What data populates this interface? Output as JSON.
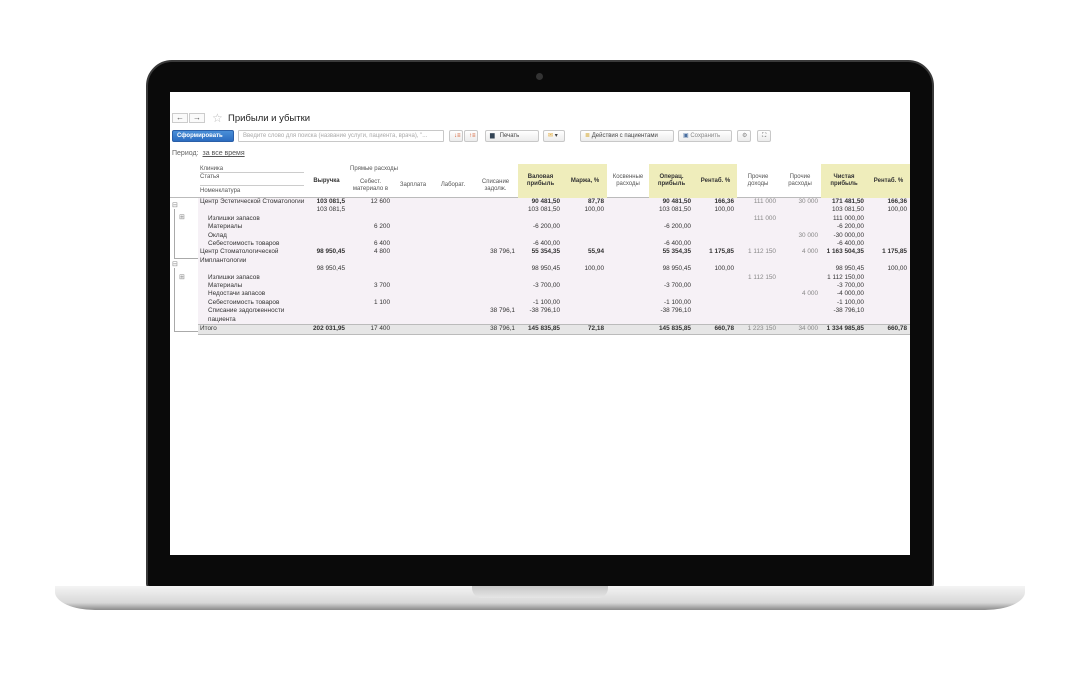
{
  "window": {
    "title": "Прибыли и убытки",
    "back": "←",
    "forward": "→"
  },
  "toolbar": {
    "generate": "Сформировать",
    "search_placeholder": "Введите слово для поиска (название услуги, пациента, врача), \"...",
    "print": "Печать",
    "patient_actions": "Действия с пациентами",
    "save": "Сохранить"
  },
  "period": {
    "label": "Период:",
    "value": "за все время"
  },
  "header": {
    "klinika": "Клиника",
    "statya": "Статья",
    "nomenklatura": "Номенклатура",
    "direct_group": "Прямые расходы",
    "columns": [
      "Выручка",
      "Себест. материало в",
      "Зарплата",
      "Лаборат.",
      "Списание задолж.",
      "Валовая прибыль",
      "Маржа, %",
      "Косвенные расходы",
      "Операц. прибыль",
      "Рентаб. %",
      "Прочие доходы",
      "Прочие расходы",
      "Чистая прибыль",
      "Рентаб. %"
    ]
  },
  "colors": {
    "highlight": "#efedbb",
    "primary": "#2b6cc0",
    "body": "#f6f1f6"
  },
  "rows": [
    {
      "type": "bold",
      "name": "Центр Эстетической Стоматологии",
      "v": [
        "103 081,5",
        "12 600",
        "",
        "",
        "",
        "90 481,50",
        "87,78",
        "",
        "90 481,50",
        "166,36",
        "111 000",
        "30 000",
        "171 481,50",
        "166,36"
      ]
    },
    {
      "type": "plain",
      "name": "",
      "v": [
        "103 081,5",
        "",
        "",
        "",
        "",
        "103 081,50",
        "100,00",
        "",
        "103 081,50",
        "100,00",
        "",
        "",
        "103 081,50",
        "100,00"
      ]
    },
    {
      "type": "sub",
      "name": "Излишки запасов",
      "v": [
        "",
        "",
        "",
        "",
        "",
        "",
        "",
        "",
        "",
        "",
        "111 000",
        "",
        "111 000,00",
        ""
      ]
    },
    {
      "type": "sub",
      "name": "Материалы",
      "v": [
        "",
        "6 200",
        "",
        "",
        "",
        "-6 200,00",
        "",
        "",
        "-6 200,00",
        "",
        "",
        "",
        "-6 200,00",
        ""
      ]
    },
    {
      "type": "sub",
      "name": "Оклад",
      "v": [
        "",
        "",
        "",
        "",
        "",
        "",
        "",
        "",
        "",
        "",
        "",
        "30 000",
        "-30 000,00",
        ""
      ]
    },
    {
      "type": "sub",
      "name": "Себестоимость товаров",
      "v": [
        "",
        "6 400",
        "",
        "",
        "",
        "-6 400,00",
        "",
        "",
        "-6 400,00",
        "",
        "",
        "",
        "-6 400,00",
        ""
      ]
    },
    {
      "type": "bold",
      "name": "Центр Стоматологической Имплантологии",
      "v": [
        "98 950,45",
        "4 800",
        "",
        "",
        "38 796,1",
        "55 354,35",
        "55,94",
        "",
        "55 354,35",
        "1 175,85",
        "1 112 150",
        "4 000",
        "1 163 504,35",
        "1 175,85"
      ]
    },
    {
      "type": "plain",
      "name": "",
      "v": [
        "98 950,45",
        "",
        "",
        "",
        "",
        "98 950,45",
        "100,00",
        "",
        "98 950,45",
        "100,00",
        "",
        "",
        "98 950,45",
        "100,00"
      ]
    },
    {
      "type": "sub",
      "name": "Излишки запасов",
      "v": [
        "",
        "",
        "",
        "",
        "",
        "",
        "",
        "",
        "",
        "",
        "1 112 150",
        "",
        "1 112 150,00",
        ""
      ]
    },
    {
      "type": "sub",
      "name": "Материалы",
      "v": [
        "",
        "3 700",
        "",
        "",
        "",
        "-3 700,00",
        "",
        "",
        "-3 700,00",
        "",
        "",
        "",
        "-3 700,00",
        ""
      ]
    },
    {
      "type": "sub",
      "name": "Недостачи запасов",
      "v": [
        "",
        "",
        "",
        "",
        "",
        "",
        "",
        "",
        "",
        "",
        "",
        "4 000",
        "-4 000,00",
        ""
      ]
    },
    {
      "type": "sub",
      "name": "Себестоимость товаров",
      "v": [
        "",
        "1 100",
        "",
        "",
        "",
        "-1 100,00",
        "",
        "",
        "-1 100,00",
        "",
        "",
        "",
        "-1 100,00",
        ""
      ]
    },
    {
      "type": "sub",
      "name": "Списание задолженности пациента",
      "v": [
        "",
        "",
        "",
        "",
        "38 796,1",
        "-38 796,10",
        "",
        "",
        "-38 796,10",
        "",
        "",
        "",
        "-38 796,10",
        ""
      ]
    },
    {
      "type": "total",
      "name": "Итого",
      "v": [
        "202 031,95",
        "17 400",
        "",
        "",
        "38 796,1",
        "145 835,85",
        "72,18",
        "",
        "145 835,85",
        "660,78",
        "1 223 150",
        "34 000",
        "1 334 985,85",
        "660,78"
      ]
    }
  ]
}
